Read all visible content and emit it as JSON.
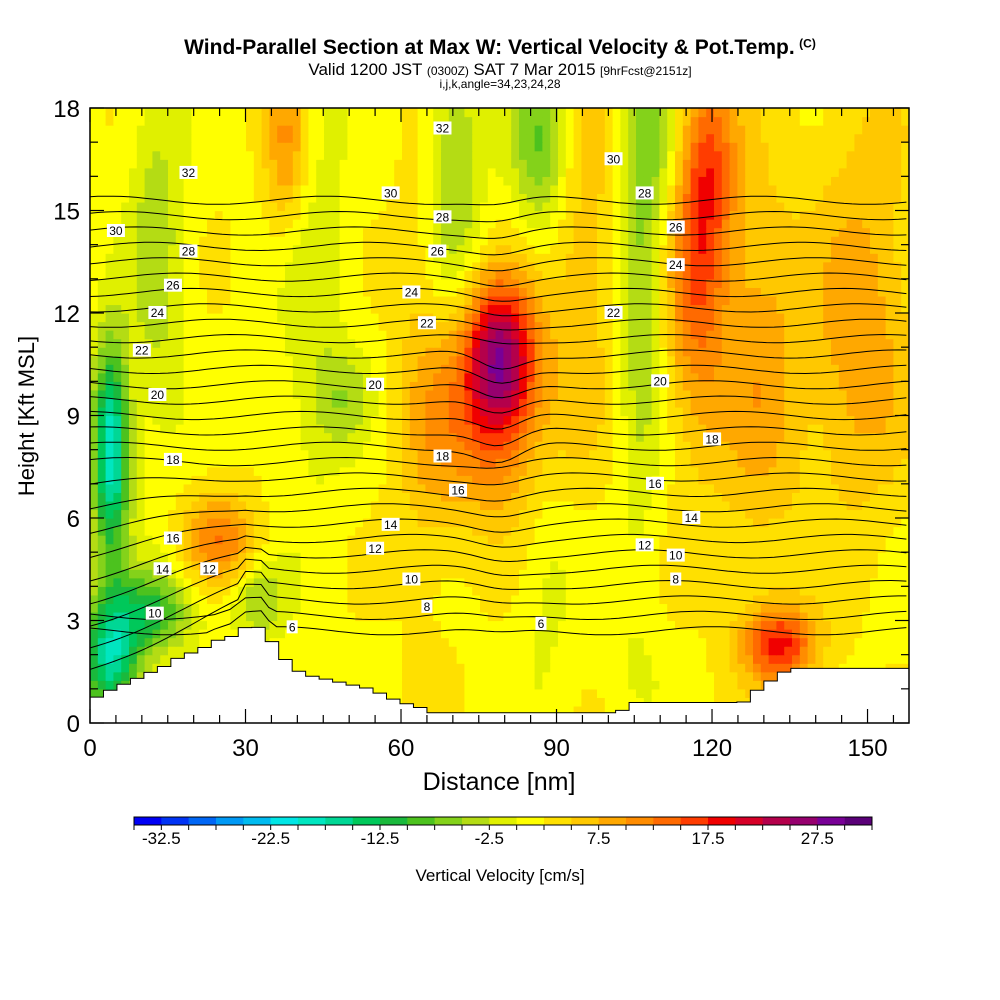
{
  "title": {
    "main": "Wind-Parallel Section at Max W: Vertical Velocity & Pot.Temp.",
    "copyright": "(C)",
    "valid_prefix": "Valid 1200 JST",
    "valid_utc": "(0300Z)",
    "valid_date": "SAT 7 Mar 2015",
    "forecast_tag": "[9hrFcst@2151z]",
    "params": "i,j,k,angle=34,23,24,28"
  },
  "chart_data": {
    "type": "heatmap",
    "xlabel": "Distance [nm]",
    "ylabel": "Height [Kft MSL]",
    "xlim": [
      0,
      158
    ],
    "ylim": [
      0,
      18
    ],
    "x_ticks": [
      0,
      30,
      60,
      90,
      120,
      150
    ],
    "x_tick_labels": [
      "0",
      "30",
      "60",
      "90",
      "120",
      "150"
    ],
    "y_ticks": [
      0,
      3,
      6,
      9,
      12,
      15,
      18
    ],
    "y_tick_labels": [
      "0",
      "3",
      "6",
      "9",
      "12",
      "15",
      "18"
    ],
    "colorbar": {
      "label": "Vertical Velocity [cm/s]",
      "min": -35,
      "max": 32.5,
      "step": 2.5,
      "tick_values": [
        -32.5,
        -22.5,
        -12.5,
        -2.5,
        7.5,
        17.5,
        27.5
      ],
      "tick_labels": [
        "-32.5",
        "-22.5",
        "-12.5",
        "-2.5",
        "7.5",
        "17.5",
        "27.5"
      ],
      "colors": [
        "#0000f5",
        "#0033f5",
        "#0066f5",
        "#0099f5",
        "#00bbf0",
        "#00e6e6",
        "#00e6c0",
        "#00d795",
        "#00c85a",
        "#1ab93c",
        "#4cc21e",
        "#84d21a",
        "#b4dc14",
        "#e0f000",
        "#ffff00",
        "#ffe000",
        "#ffc800",
        "#ffa800",
        "#ff8c00",
        "#ff6a00",
        "#ff3c00",
        "#f00000",
        "#d70028",
        "#b4004b",
        "#96006e",
        "#780096",
        "#5a0078"
      ]
    },
    "velocity_features": [
      {
        "x": 79,
        "z": 10.8,
        "sx": 5,
        "sz": 1.6,
        "w": 22
      },
      {
        "x": 77,
        "z": 8.5,
        "sx": 9,
        "sz": 2.0,
        "w": 9
      },
      {
        "x": 117,
        "z": 13.5,
        "sx": 4,
        "sz": 3.5,
        "w": 12
      },
      {
        "x": 129,
        "z": 10.5,
        "sx": 6,
        "sz": 4.0,
        "w": 7
      },
      {
        "x": 133,
        "z": 2.3,
        "sx": 5,
        "sz": 0.8,
        "w": 16
      },
      {
        "x": 148,
        "z": 10.0,
        "sx": 7,
        "sz": 3.0,
        "w": 5
      },
      {
        "x": 38,
        "z": 17.0,
        "sx": 3,
        "sz": 2.0,
        "w": 9
      },
      {
        "x": 120,
        "z": 16.5,
        "sx": 4,
        "sz": 2.0,
        "w": 8
      },
      {
        "x": 25,
        "z": 5.3,
        "sx": 5,
        "sz": 1.0,
        "w": 10
      },
      {
        "x": 65,
        "z": 11.0,
        "sx": 4,
        "sz": 5.0,
        "w": 4
      },
      {
        "x": 95,
        "z": 14.0,
        "sx": 5,
        "sz": 4.0,
        "w": 5
      },
      {
        "x": 4,
        "z": 8.0,
        "sx": 2.5,
        "sz": 2.2,
        "w": -22
      },
      {
        "x": 4,
        "z": 1.8,
        "sx": 4,
        "sz": 1.2,
        "w": -18
      },
      {
        "x": 12,
        "z": 3.3,
        "sx": 6,
        "sz": 0.9,
        "w": -12
      },
      {
        "x": 32,
        "z": 3.6,
        "sx": 4,
        "sz": 0.8,
        "w": -7
      },
      {
        "x": 70,
        "z": 16.0,
        "sx": 4,
        "sz": 3.0,
        "w": -8
      },
      {
        "x": 87,
        "z": 17.0,
        "sx": 4,
        "sz": 2.0,
        "w": -10
      },
      {
        "x": 106,
        "z": 13.0,
        "sx": 3,
        "sz": 5.0,
        "w": -7
      },
      {
        "x": 110,
        "z": 17.0,
        "sx": 4,
        "sz": 2.0,
        "w": -6
      },
      {
        "x": 13,
        "z": 14.0,
        "sx": 4,
        "sz": 4.0,
        "w": -6
      },
      {
        "x": 43,
        "z": 13.0,
        "sx": 5,
        "sz": 5.0,
        "w": -4
      },
      {
        "x": 49,
        "z": 9.5,
        "sx": 4,
        "sz": 1.0,
        "w": -5
      },
      {
        "x": 88,
        "z": 4.5,
        "sx": 4,
        "sz": 3.0,
        "w": -3
      },
      {
        "x": 105,
        "z": 1.5,
        "sx": 4,
        "sz": 1.0,
        "w": -2
      },
      {
        "x": 150,
        "z": 14.5,
        "sx": 7,
        "sz": 4.0,
        "w": 4
      }
    ],
    "terrain_profile": {
      "x": [
        0,
        3,
        6,
        9,
        12,
        15,
        18,
        21,
        24,
        27,
        30,
        33,
        36,
        39,
        42,
        45,
        48,
        51,
        54,
        57,
        60,
        63,
        66,
        69,
        72,
        75,
        78,
        81,
        84,
        87,
        90,
        93,
        96,
        99,
        102,
        105,
        108,
        111,
        114,
        117,
        120,
        123,
        126,
        129,
        132,
        135,
        138,
        141,
        144,
        147,
        150,
        153,
        156,
        158
      ],
      "height_kft": [
        0.65,
        0.9,
        1.1,
        1.3,
        1.5,
        1.7,
        2.0,
        2.1,
        2.4,
        2.5,
        2.8,
        2.8,
        2.2,
        1.6,
        1.4,
        1.3,
        1.2,
        1.1,
        1.0,
        0.8,
        0.6,
        0.5,
        0.3,
        0.3,
        0.3,
        0.3,
        0.3,
        0.3,
        0.3,
        0.3,
        0.3,
        0.3,
        0.3,
        0.3,
        0.3,
        0.6,
        0.6,
        0.6,
        0.6,
        0.6,
        0.6,
        0.6,
        0.6,
        1.0,
        1.3,
        1.6,
        1.6,
        1.6,
        1.6,
        1.6,
        1.6,
        1.6,
        1.6,
        1.6
      ]
    },
    "theta_contours": {
      "levels": [
        6,
        7,
        8,
        9,
        10,
        11,
        12,
        13,
        14,
        15,
        16,
        17,
        18,
        19,
        20,
        21,
        22,
        23,
        24,
        25,
        26,
        27,
        28,
        29,
        30,
        31,
        32,
        33,
        34
      ],
      "labels": [
        {
          "text": "6",
          "x": 39,
          "z": 2.8
        },
        {
          "text": "6",
          "x": 87,
          "z": 2.9
        },
        {
          "text": "8",
          "x": 65,
          "z": 3.4
        },
        {
          "text": "8",
          "x": 113,
          "z": 4.2
        },
        {
          "text": "10",
          "x": 12.5,
          "z": 3.2
        },
        {
          "text": "10",
          "x": 62,
          "z": 4.2
        },
        {
          "text": "10",
          "x": 113,
          "z": 4.9
        },
        {
          "text": "12",
          "x": 23,
          "z": 4.5
        },
        {
          "text": "12",
          "x": 55,
          "z": 5.1
        },
        {
          "text": "12",
          "x": 107,
          "z": 5.2
        },
        {
          "text": "14",
          "x": 14,
          "z": 4.5
        },
        {
          "text": "14",
          "x": 58,
          "z": 5.8
        },
        {
          "text": "14",
          "x": 116,
          "z": 6.0
        },
        {
          "text": "16",
          "x": 16,
          "z": 5.4
        },
        {
          "text": "16",
          "x": 71,
          "z": 6.8
        },
        {
          "text": "16",
          "x": 109,
          "z": 7.0
        },
        {
          "text": "18",
          "x": 16,
          "z": 7.7
        },
        {
          "text": "18",
          "x": 68,
          "z": 7.8
        },
        {
          "text": "18",
          "x": 120,
          "z": 8.3
        },
        {
          "text": "20",
          "x": 13,
          "z": 9.6
        },
        {
          "text": "20",
          "x": 55,
          "z": 9.9
        },
        {
          "text": "20",
          "x": 110,
          "z": 10.0
        },
        {
          "text": "22",
          "x": 10,
          "z": 10.9
        },
        {
          "text": "22",
          "x": 65,
          "z": 11.7
        },
        {
          "text": "22",
          "x": 101,
          "z": 12.0
        },
        {
          "text": "24",
          "x": 13,
          "z": 12.0
        },
        {
          "text": "24",
          "x": 62,
          "z": 12.6
        },
        {
          "text": "24",
          "x": 113,
          "z": 13.4
        },
        {
          "text": "26",
          "x": 16,
          "z": 12.8
        },
        {
          "text": "26",
          "x": 67,
          "z": 13.8
        },
        {
          "text": "26",
          "x": 113,
          "z": 14.5
        },
        {
          "text": "28",
          "x": 19,
          "z": 13.8
        },
        {
          "text": "28",
          "x": 68,
          "z": 14.8
        },
        {
          "text": "28",
          "x": 107,
          "z": 15.5
        },
        {
          "text": "30",
          "x": 5,
          "z": 14.4
        },
        {
          "text": "30",
          "x": 58,
          "z": 15.5
        },
        {
          "text": "30",
          "x": 101,
          "z": 16.5
        },
        {
          "text": "32",
          "x": 19,
          "z": 16.1
        },
        {
          "text": "32",
          "x": 68,
          "z": 17.4
        }
      ]
    }
  }
}
